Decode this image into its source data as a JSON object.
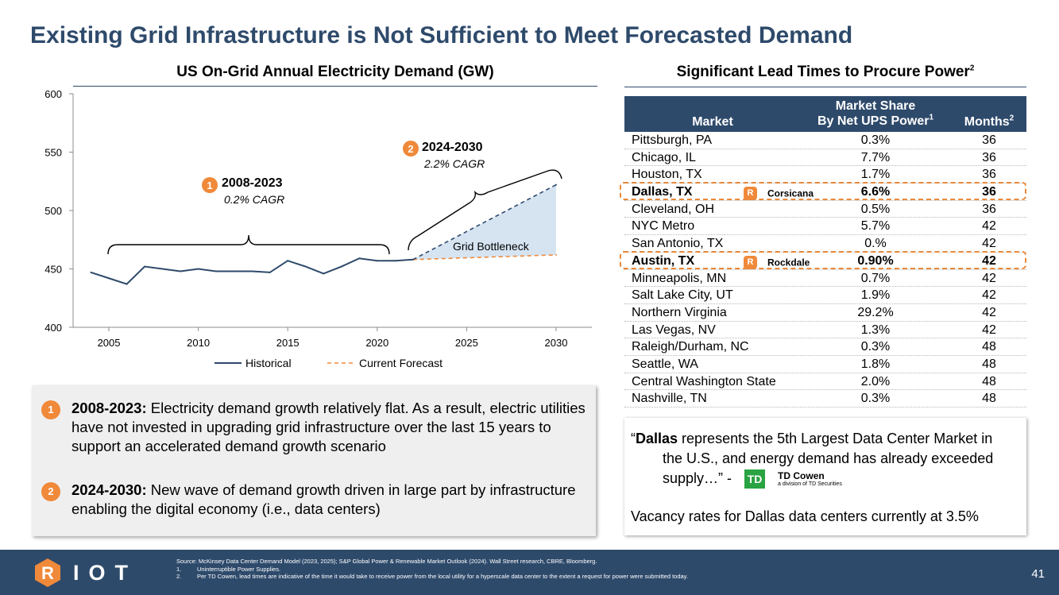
{
  "title": "Existing Grid Infrastructure is Not Sufficient to Meet Forecasted Demand",
  "colors": {
    "navy": "#2e4a6b",
    "orange": "#f0893a",
    "grey_box": "#efefef",
    "fill_bottleneck": "#d6e4f2",
    "td_green": "#2aa342"
  },
  "chart_data": {
    "type": "line",
    "title": "US On-Grid Annual Electricity Demand (GW)",
    "xlim": [
      2003,
      2032
    ],
    "ylim": [
      400,
      600
    ],
    "y_ticks": [
      "400",
      "450",
      "500",
      "550",
      "600"
    ],
    "x_ticks": [
      "2005",
      "2010",
      "2015",
      "2020",
      "2025",
      "2030"
    ],
    "series": [
      {
        "name": "Historical",
        "color": "#2e4a6b",
        "style": "solid",
        "x": [
          2004,
          2005,
          2006,
          2007,
          2008,
          2009,
          2010,
          2011,
          2012,
          2013,
          2014,
          2015,
          2016,
          2017,
          2018,
          2019,
          2020,
          2021,
          2022
        ],
        "values": [
          447,
          442,
          437,
          452,
          450,
          448,
          450,
          448,
          448,
          448,
          447,
          457,
          452,
          446,
          452,
          459,
          457,
          457,
          458
        ]
      },
      {
        "name": "Current Forecast",
        "color": "#f0893a",
        "style": "dashed",
        "x": [
          2022,
          2030
        ],
        "values": [
          458,
          462
        ]
      },
      {
        "name": "2.2% CAGR forecast",
        "color": "#2e4a6b",
        "style": "dashed",
        "x": [
          2022,
          2030
        ],
        "values": [
          458,
          522
        ]
      }
    ],
    "legend": [
      "Historical",
      "Current Forecast"
    ],
    "legend_position": "bottom",
    "annotations": [
      {
        "badge": "1",
        "label": "2008-2023",
        "sublabel": "0.2% CAGR"
      },
      {
        "badge": "2",
        "label": "2024-2030",
        "sublabel": "2.2% CAGR"
      },
      {
        "label": "Grid Bottleneck"
      }
    ]
  },
  "notes": [
    {
      "badge": "1",
      "bold": "2008-2023:",
      "text": " Electricity demand growth relatively flat. As a result, electric utilities have not invested in upgrading grid infrastructure over the last 15 years to support an accelerated demand growth scenario"
    },
    {
      "badge": "2",
      "bold": "2024-2030:",
      "text": " New wave of demand growth driven in large part by infrastructure enabling the digital economy (i.e., data centers)"
    }
  ],
  "table": {
    "title": "Significant Lead Times to Procure Power",
    "title_sup": "2",
    "header": {
      "market": "Market",
      "share_line1": "Market Share",
      "share_line2": "By Net UPS Power",
      "share_sup": "1",
      "months": "Months",
      "months_sup": "2"
    },
    "rows": [
      {
        "market": "Pittsburgh, PA",
        "share": "0.3%",
        "months": "36"
      },
      {
        "market": "Chicago, IL",
        "share": "7.7%",
        "months": "36"
      },
      {
        "market": "Houston, TX",
        "share": "1.7%",
        "months": "36"
      },
      {
        "market": "Dallas, TX",
        "share": "6.6%",
        "months": "36",
        "highlight": true,
        "site": "Corsicana",
        "site_icon": "R"
      },
      {
        "market": "Cleveland, OH",
        "share": "0.5%",
        "months": "36"
      },
      {
        "market": "NYC Metro",
        "share": "5.7%",
        "months": "42"
      },
      {
        "market": "San Antonio, TX",
        "share": "0.%",
        "months": "42"
      },
      {
        "market": "Austin, TX",
        "share": "0.90%",
        "months": "42",
        "highlight": true,
        "site": "Rockdale",
        "site_icon": "R"
      },
      {
        "market": "Minneapolis, MN",
        "share": "0.7%",
        "months": "42"
      },
      {
        "market": "Salt Lake City, UT",
        "share": "1.9%",
        "months": "42"
      },
      {
        "market": "Northern Virginia",
        "share": "29.2%",
        "months": "42"
      },
      {
        "market": "Las Vegas, NV",
        "share": "1.3%",
        "months": "42"
      },
      {
        "market": "Raleigh/Durham, NC",
        "share": "0.3%",
        "months": "48"
      },
      {
        "market": "Seattle, WA",
        "share": "1.8%",
        "months": "48"
      },
      {
        "market": "Central Washington State",
        "share": "2.0%",
        "months": "48"
      },
      {
        "market": "Nashville, TN",
        "share": "0.3%",
        "months": "48"
      }
    ]
  },
  "quote": {
    "open": "“",
    "bold": "Dallas",
    "text1": " represents the 5th Largest Data Center Market in",
    "text2": "the U.S., and energy demand has already exceeded",
    "text3": "supply…” -",
    "td_logo": "TD",
    "td_name": "TD Cowen",
    "td_sub": "a division of TD Securities",
    "vacancy": "Vacancy rates for Dallas data centers currently at 3.5%"
  },
  "footer": {
    "logo_letter": "R",
    "logo_text": "IOT",
    "source": "Source: McKinsey Data Center Demand Model (2023, 2025); S&P Global Power & Renewable Market Outlook (2024). Wall Street research, CBRE, Bloomberg.",
    "footnotes": [
      {
        "n": "1.",
        "text": "Uninterruptible Power Supplies."
      },
      {
        "n": "2.",
        "text": "Per TD Cowen, lead times are indicative of the time it would take to receive power from the local utility for a hyperscale data center to the extent a request for power were submitted today."
      }
    ],
    "page": "41"
  }
}
